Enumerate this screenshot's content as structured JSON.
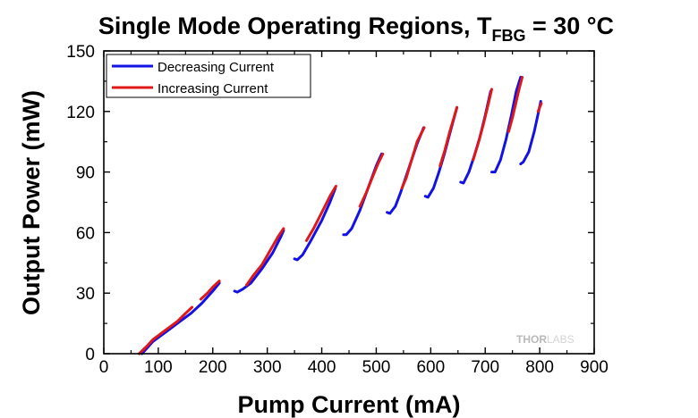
{
  "chart_data": {
    "type": "line",
    "title": {
      "main": "Single Mode Operating Regions, T",
      "subscript": "FBG",
      "suffix": " = 30 °C"
    },
    "xlabel": "Pump Current (mA)",
    "ylabel": "Output Power (mW)",
    "xlim": [
      0,
      900
    ],
    "ylim": [
      0,
      150
    ],
    "xticks": [
      0,
      100,
      200,
      300,
      400,
      500,
      600,
      700,
      800,
      900
    ],
    "yticks": [
      0,
      30,
      60,
      90,
      120,
      150
    ],
    "x_minor_step": 50,
    "y_minor_step": 15,
    "grid": false,
    "legend_position": "top-left",
    "series": [
      {
        "name": "Decreasing Current",
        "color": "#1212e6",
        "segments": [
          [
            [
              70,
              0
            ],
            [
              80,
              3
            ],
            [
              90,
              6
            ],
            [
              100,
              8
            ],
            [
              120,
              12
            ],
            [
              140,
              16
            ],
            [
              160,
              20
            ],
            [
              180,
              25
            ],
            [
              200,
              31
            ],
            [
              212,
              35
            ]
          ],
          [
            [
              240,
              31
            ],
            [
              245,
              30.5
            ],
            [
              255,
              32
            ],
            [
              270,
              35
            ],
            [
              290,
              42
            ],
            [
              310,
              50
            ],
            [
              325,
              58
            ],
            [
              330,
              61
            ]
          ],
          [
            [
              350,
              47
            ],
            [
              355,
              46.5
            ],
            [
              365,
              49
            ],
            [
              380,
              56
            ],
            [
              400,
              66
            ],
            [
              415,
              75
            ],
            [
              425,
              82
            ]
          ],
          [
            [
              440,
              59
            ],
            [
              445,
              59
            ],
            [
              455,
              62
            ],
            [
              470,
              71
            ],
            [
              485,
              82
            ],
            [
              500,
              93
            ],
            [
              510,
              99
            ]
          ],
          [
            [
              520,
              70
            ],
            [
              525,
              69.5
            ],
            [
              535,
              73
            ],
            [
              545,
              80
            ],
            [
              555,
              88
            ],
            [
              565,
              96
            ],
            [
              575,
              104
            ],
            [
              587,
              112
            ]
          ],
          [
            [
              590,
              78
            ],
            [
              595,
              77.5
            ],
            [
              605,
              82
            ],
            [
              615,
              90
            ],
            [
              625,
              99
            ],
            [
              635,
              109
            ],
            [
              648,
              122
            ]
          ],
          [
            [
              655,
              85
            ],
            [
              660,
              84.5
            ],
            [
              670,
              90
            ],
            [
              680,
              98
            ],
            [
              690,
              107
            ],
            [
              700,
              118
            ],
            [
              710,
              130
            ]
          ],
          [
            [
              712,
              90
            ],
            [
              718,
              90
            ],
            [
              728,
              96
            ],
            [
              738,
              106
            ],
            [
              748,
              118
            ],
            [
              757,
              130
            ],
            [
              765,
              137
            ]
          ],
          [
            [
              765,
              94
            ],
            [
              770,
              95
            ],
            [
              780,
              100
            ],
            [
              790,
              110
            ],
            [
              798,
              120
            ],
            [
              802,
              125
            ]
          ]
        ]
      },
      {
        "name": "Increasing Current",
        "color": "#e01818",
        "segments": [
          [
            [
              65,
              0
            ],
            [
              80,
              4
            ],
            [
              90,
              7
            ],
            [
              100,
              9
            ],
            [
              110,
              11
            ],
            [
              120,
              13
            ],
            [
              135,
              16
            ],
            [
              150,
              20
            ],
            [
              162,
              23
            ]
          ],
          [
            [
              178,
              27
            ],
            [
              190,
              30
            ],
            [
              200,
              33
            ],
            [
              212,
              36
            ]
          ],
          [
            [
              262,
              34
            ],
            [
              275,
              39
            ],
            [
              290,
              44
            ],
            [
              305,
              51
            ],
            [
              320,
              58
            ],
            [
              330,
              62
            ]
          ],
          [
            [
              372,
              56
            ],
            [
              385,
              62
            ],
            [
              400,
              70
            ],
            [
              415,
              78
            ],
            [
              426,
              83
            ]
          ],
          [
            [
              470,
              73
            ],
            [
              482,
              80
            ],
            [
              494,
              88
            ],
            [
              503,
              94
            ],
            [
              512,
              99
            ]
          ],
          [
            [
              547,
              82
            ],
            [
              555,
              87
            ],
            [
              565,
              96
            ],
            [
              575,
              105
            ],
            [
              588,
              112
            ]
          ],
          [
            [
              617,
              93
            ],
            [
              625,
              100
            ],
            [
              635,
              110
            ],
            [
              648,
              122
            ]
          ],
          [
            [
              678,
              96
            ],
            [
              688,
              105
            ],
            [
              697,
              114
            ],
            [
              705,
              123
            ],
            [
              712,
              131
            ]
          ],
          [
            [
              743,
              110
            ],
            [
              750,
              117
            ],
            [
              757,
              125
            ],
            [
              763,
              132
            ],
            [
              768,
              137
            ]
          ],
          [
            [
              797,
              120
            ],
            [
              800,
              122
            ],
            [
              803,
              124
            ]
          ]
        ]
      }
    ],
    "watermark": {
      "bold": "THOR",
      "light": "LABS"
    }
  }
}
